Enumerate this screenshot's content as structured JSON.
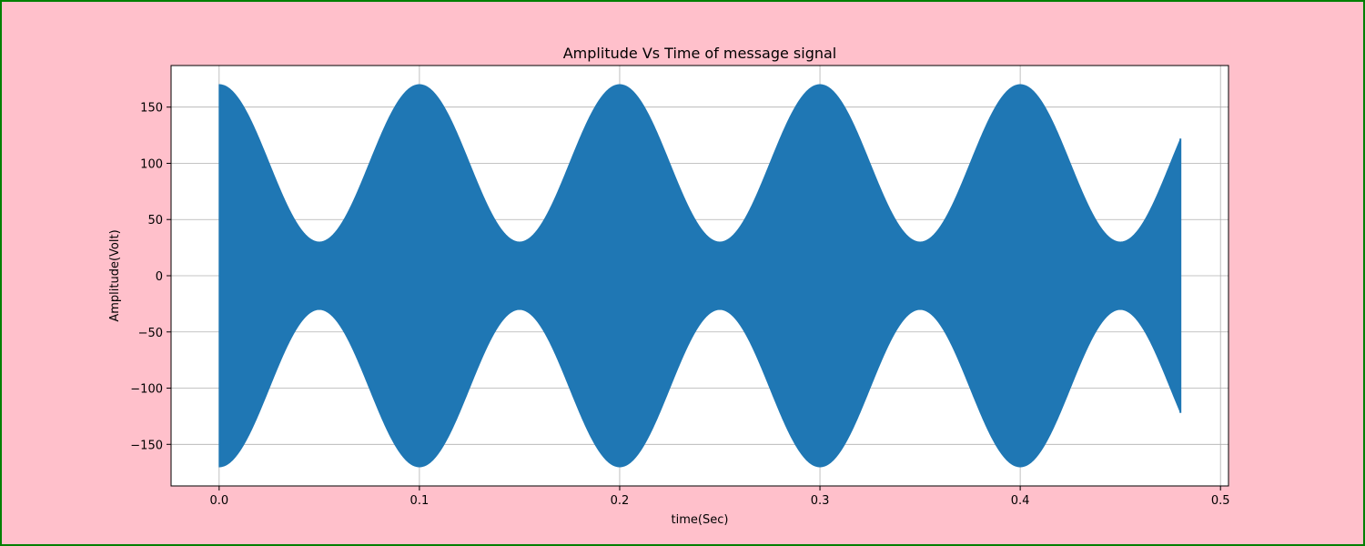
{
  "figure": {
    "background": "#ffc0cb",
    "border_color": "#008000"
  },
  "chart_data": {
    "type": "line",
    "title": "Amplitude Vs Time of message signal",
    "xlabel": "time(Sec)",
    "ylabel": "Amplitude(Volt)",
    "xlim": [
      -0.024,
      0.504
    ],
    "ylim": [
      -187,
      187
    ],
    "xticks": [
      0.0,
      0.1,
      0.2,
      0.3,
      0.4,
      0.5
    ],
    "xtick_labels": [
      "0.0",
      "0.1",
      "0.2",
      "0.3",
      "0.4",
      "0.5"
    ],
    "yticks": [
      150,
      100,
      50,
      0,
      -50,
      -100,
      -150
    ],
    "ytick_labels": [
      "150",
      "100",
      "50",
      "0",
      "−50",
      "−100",
      "−150"
    ],
    "grid": true,
    "line_color": "#1f77b4",
    "signal": {
      "kind": "amplitude-modulated sinusoid",
      "t_start": 0.0,
      "t_end": 0.48,
      "carrier_amplitude": 100,
      "message_amplitude": 70,
      "message_frequency_hz": 10,
      "envelope_max": 170,
      "envelope_min": 30,
      "value_at_end": 122
    },
    "envelope_points": [
      {
        "x": 0.0,
        "upper": 170,
        "lower": -170
      },
      {
        "x": 0.05,
        "upper": 30,
        "lower": -30
      },
      {
        "x": 0.1,
        "upper": 170,
        "lower": -170
      },
      {
        "x": 0.15,
        "upper": 30,
        "lower": -30
      },
      {
        "x": 0.2,
        "upper": 170,
        "lower": -170
      },
      {
        "x": 0.25,
        "upper": 30,
        "lower": -30
      },
      {
        "x": 0.3,
        "upper": 170,
        "lower": -170
      },
      {
        "x": 0.35,
        "upper": 30,
        "lower": -30
      },
      {
        "x": 0.4,
        "upper": 170,
        "lower": -170
      },
      {
        "x": 0.45,
        "upper": 30,
        "lower": -30
      },
      {
        "x": 0.48,
        "upper": 122,
        "lower": -122
      }
    ]
  }
}
